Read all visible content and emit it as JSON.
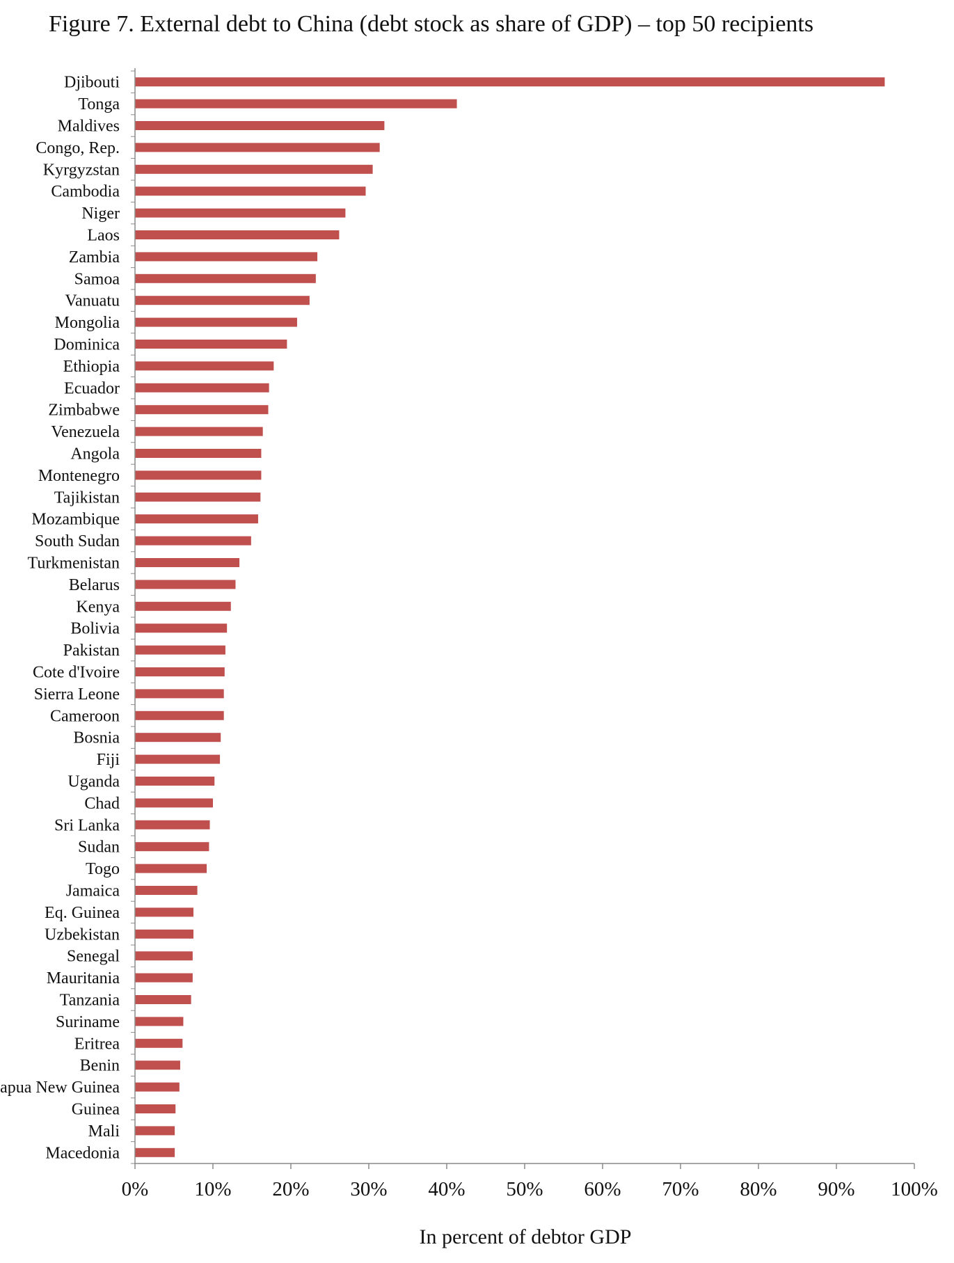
{
  "chart_data": {
    "type": "bar",
    "orientation": "horizontal",
    "title": "Figure 7. External debt to China (debt stock as share of GDP) – top 50 recipients",
    "xlabel": "In percent of debtor GDP",
    "ylabel": "",
    "xlim": [
      0,
      100
    ],
    "xticks": [
      "0%",
      "10%",
      "20%",
      "30%",
      "40%",
      "50%",
      "60%",
      "70%",
      "80%",
      "90%",
      "100%"
    ],
    "grid": false,
    "bar_color": "#c0504d",
    "categories": [
      "Djibouti",
      "Tonga",
      "Maldives",
      "Congo, Rep.",
      "Kyrgyzstan",
      "Cambodia",
      "Niger",
      "Laos",
      "Zambia",
      "Samoa",
      "Vanuatu",
      "Mongolia",
      "Dominica",
      "Ethiopia",
      "Ecuador",
      "Zimbabwe",
      "Venezuela",
      "Angola",
      "Montenegro",
      "Tajikistan",
      "Mozambique",
      "South Sudan",
      "Turkmenistan",
      "Belarus",
      "Kenya",
      "Bolivia",
      "Pakistan",
      "Cote d'Ivoire",
      "Sierra Leone",
      "Cameroon",
      "Bosnia",
      "Fiji",
      "Uganda",
      "Chad",
      "Sri Lanka",
      "Sudan",
      "Togo",
      "Jamaica",
      "Eq. Guinea",
      "Uzbekistan",
      "Senegal",
      "Mauritania",
      "Tanzania",
      "Suriname",
      "Eritrea",
      "Benin",
      "Papua New Guinea",
      "Guinea",
      "Mali",
      "Macedonia"
    ],
    "values": [
      96.2,
      41.3,
      32.0,
      31.4,
      30.5,
      29.6,
      27.0,
      26.2,
      23.4,
      23.2,
      22.4,
      20.8,
      19.5,
      17.8,
      17.2,
      17.1,
      16.4,
      16.2,
      16.2,
      16.1,
      15.8,
      14.9,
      13.4,
      12.9,
      12.3,
      11.8,
      11.6,
      11.5,
      11.4,
      11.4,
      11.0,
      10.9,
      10.2,
      10.0,
      9.6,
      9.5,
      9.2,
      8.0,
      7.5,
      7.5,
      7.4,
      7.4,
      7.2,
      6.2,
      6.1,
      5.8,
      5.7,
      5.2,
      5.1,
      5.1
    ]
  }
}
